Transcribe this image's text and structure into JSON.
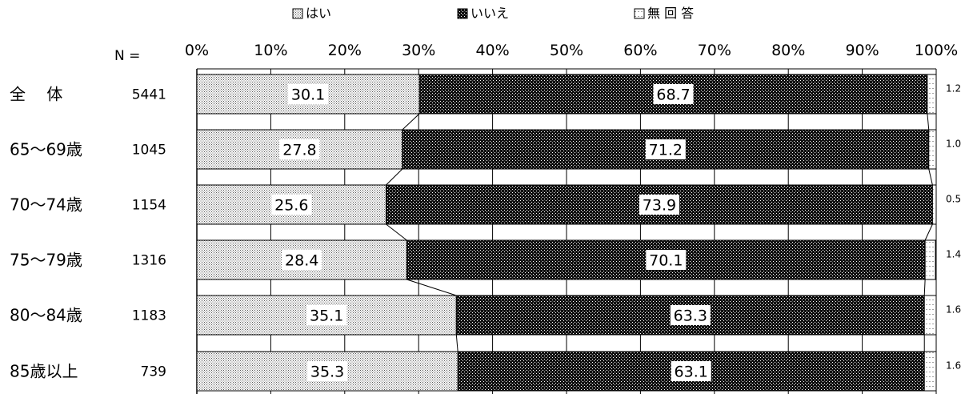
{
  "chart_data": {
    "type": "bar",
    "orientation": "horizontal",
    "stacked": "percent",
    "n_header": "N =",
    "categories": [
      "全　 体",
      "65～69歳",
      "70～74歳",
      "75～79歳",
      "80～84歳",
      "85歳以上"
    ],
    "n_values": [
      "5441",
      "1045",
      "1154",
      "1316",
      "1183",
      "739"
    ],
    "series": [
      {
        "name": "はい",
        "values": [
          30.1,
          27.8,
          25.6,
          28.4,
          35.1,
          35.3
        ]
      },
      {
        "name": "いいえ",
        "values": [
          68.7,
          71.2,
          73.9,
          70.1,
          63.3,
          63.1
        ]
      },
      {
        "name": "無 回 答",
        "values": [
          1.2,
          1.0,
          0.5,
          1.4,
          1.6,
          1.6
        ]
      }
    ],
    "value_labels": {
      "はい": [
        "30.1",
        "27.8",
        "25.6",
        "28.4",
        "35.1",
        "35.3"
      ],
      "いいえ": [
        "68.7",
        "71.2",
        "73.9",
        "70.1",
        "63.3",
        "63.1"
      ],
      "無 回 答": [
        "1.2",
        "1.0",
        "0.5",
        "1.4",
        "1.6",
        "1.6"
      ]
    },
    "xlim": [
      0,
      100
    ],
    "x_ticks": [
      "0%",
      "10%",
      "20%",
      "30%",
      "40%",
      "50%",
      "60%",
      "70%",
      "80%",
      "90%",
      "100%"
    ],
    "legend_position": "top",
    "series_lines": true
  }
}
